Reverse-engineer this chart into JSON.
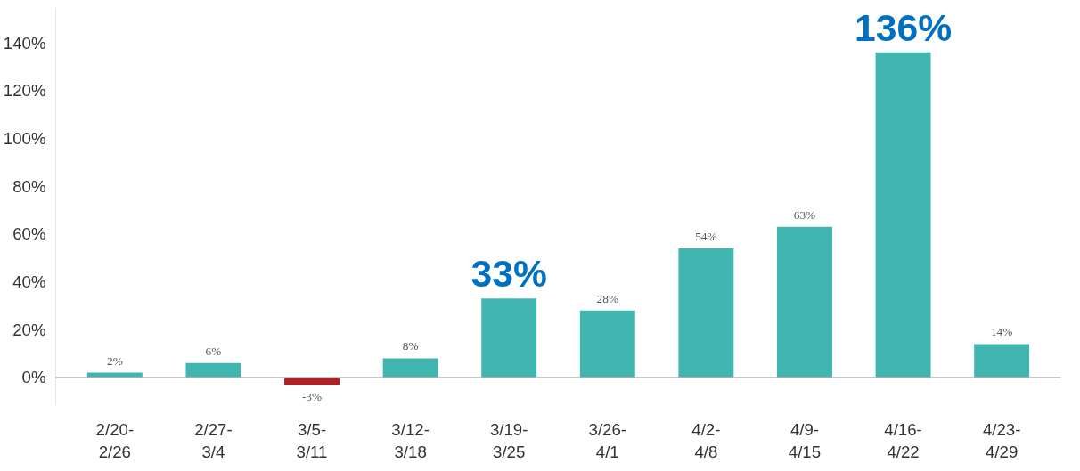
{
  "chart_data": {
    "type": "bar",
    "categories": [
      "2/20-2/26",
      "2/27-3/4",
      "3/5-3/11",
      "3/12-3/18",
      "3/19-3/25",
      "3/26-4/1",
      "4/2-4/8",
      "4/9-4/15",
      "4/16-4/22",
      "4/23-4/29"
    ],
    "values": [
      2,
      6,
      -3,
      8,
      33,
      28,
      54,
      63,
      136,
      14
    ],
    "colors": [
      "#41b6b0",
      "#41b6b0",
      "#b22025",
      "#41b6b0",
      "#41b6b0",
      "#41b6b0",
      "#41b6b0",
      "#41b6b0",
      "#41b6b0",
      "#41b6b0"
    ],
    "value_labels": [
      "2%",
      "6%",
      "-3%",
      "8%",
      null,
      "28%",
      "54%",
      "63%",
      null,
      "14%"
    ],
    "annotations": [
      {
        "text": "33%",
        "x": "3/19-3/25",
        "y": 33
      },
      {
        "text": "136%",
        "x": "4/16-4/22",
        "y": 136
      }
    ],
    "ylim": [
      -11,
      154
    ],
    "yticks": [
      {
        "value": 0,
        "label": "0%"
      },
      {
        "value": 20,
        "label": "20%"
      },
      {
        "value": 40,
        "label": "40%"
      },
      {
        "value": 60,
        "label": "60%"
      },
      {
        "value": 80,
        "label": "80%"
      },
      {
        "value": 100,
        "label": "100%"
      },
      {
        "value": 120,
        "label": "120%"
      },
      {
        "value": 140,
        "label": "140%"
      }
    ],
    "grid": false
  }
}
